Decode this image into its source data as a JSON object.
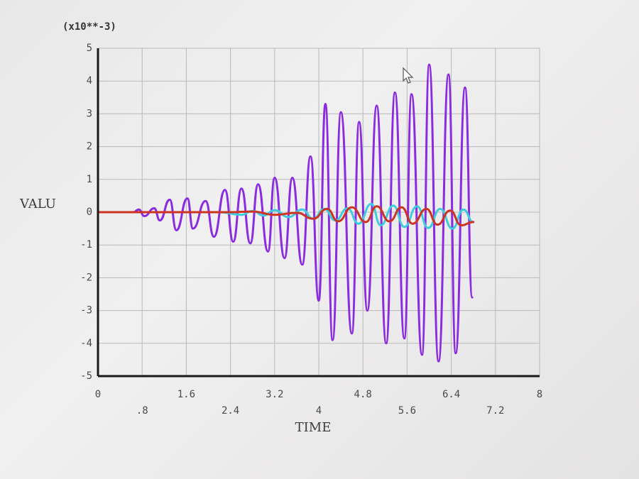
{
  "chart_data": {
    "type": "line",
    "scale_label": "(x10**-3)",
    "xlabel": "TIME",
    "ylabel": "VALU",
    "xlim": [
      0,
      8
    ],
    "ylim": [
      -5,
      5
    ],
    "grid": true,
    "x_ticks_upper": [
      {
        "value": 0,
        "label": "0"
      },
      {
        "value": 1.6,
        "label": "1.6"
      },
      {
        "value": 3.2,
        "label": "3.2"
      },
      {
        "value": 4.8,
        "label": "4.8"
      },
      {
        "value": 6.4,
        "label": "6.4"
      },
      {
        "value": 8,
        "label": "8"
      }
    ],
    "x_ticks_lower": [
      {
        "value": 0.8,
        "label": ".8"
      },
      {
        "value": 2.4,
        "label": "2.4"
      },
      {
        "value": 4,
        "label": "4"
      },
      {
        "value": 5.6,
        "label": "5.6"
      },
      {
        "value": 7.2,
        "label": "7.2"
      }
    ],
    "y_ticks": [
      {
        "value": 5,
        "label": "5"
      },
      {
        "value": 4,
        "label": "4"
      },
      {
        "value": 3,
        "label": "3"
      },
      {
        "value": 2,
        "label": "2"
      },
      {
        "value": 1,
        "label": "1"
      },
      {
        "value": 0,
        "label": "0"
      },
      {
        "value": -1,
        "label": "-1"
      },
      {
        "value": -2,
        "label": "-2"
      },
      {
        "value": -3,
        "label": "-3"
      },
      {
        "value": -4,
        "label": "-4"
      },
      {
        "value": -5,
        "label": "-5"
      }
    ],
    "series": [
      {
        "color": "#8a2be2",
        "points": [
          [
            0,
            0
          ],
          [
            0.5,
            0
          ],
          [
            0.64,
            0
          ],
          [
            0.74,
            0.08
          ],
          [
            0.84,
            -0.12
          ],
          [
            1.02,
            0.12
          ],
          [
            1.12,
            -0.25
          ],
          [
            1.3,
            0.38
          ],
          [
            1.42,
            -0.55
          ],
          [
            1.62,
            0.42
          ],
          [
            1.72,
            -0.5
          ],
          [
            1.95,
            0.34
          ],
          [
            2.1,
            -0.75
          ],
          [
            2.3,
            0.68
          ],
          [
            2.45,
            -0.9
          ],
          [
            2.6,
            0.72
          ],
          [
            2.76,
            -0.95
          ],
          [
            2.9,
            0.85
          ],
          [
            3.08,
            -1.2
          ],
          [
            3.2,
            1.05
          ],
          [
            3.38,
            -1.4
          ],
          [
            3.52,
            1.05
          ],
          [
            3.7,
            -1.6
          ],
          [
            3.85,
            1.7
          ],
          [
            4.0,
            -2.7
          ],
          [
            4.12,
            3.3
          ],
          [
            4.25,
            -3.9
          ],
          [
            4.4,
            3.05
          ],
          [
            4.6,
            -3.7
          ],
          [
            4.73,
            2.75
          ],
          [
            4.88,
            -3.0
          ],
          [
            5.05,
            3.25
          ],
          [
            5.22,
            -4.0
          ],
          [
            5.38,
            3.65
          ],
          [
            5.55,
            -3.85
          ],
          [
            5.68,
            3.6
          ],
          [
            5.87,
            -4.35
          ],
          [
            6.0,
            4.5
          ],
          [
            6.17,
            -4.55
          ],
          [
            6.35,
            4.2
          ],
          [
            6.48,
            -4.3
          ],
          [
            6.65,
            3.8
          ],
          [
            6.78,
            -2.6
          ]
        ]
      },
      {
        "color": "#3ecbdc",
        "points": [
          [
            0,
            0
          ],
          [
            2.2,
            0
          ],
          [
            2.6,
            -0.08
          ],
          [
            2.8,
            0.04
          ],
          [
            3.0,
            -0.1
          ],
          [
            3.2,
            0.06
          ],
          [
            3.45,
            -0.15
          ],
          [
            3.7,
            0.08
          ],
          [
            3.9,
            -0.2
          ],
          [
            4.1,
            0.1
          ],
          [
            4.3,
            -0.25
          ],
          [
            4.52,
            0.12
          ],
          [
            4.72,
            -0.35
          ],
          [
            4.95,
            0.25
          ],
          [
            5.12,
            -0.4
          ],
          [
            5.35,
            0.2
          ],
          [
            5.55,
            -0.45
          ],
          [
            5.78,
            0.18
          ],
          [
            5.98,
            -0.48
          ],
          [
            6.2,
            0.1
          ],
          [
            6.42,
            -0.5
          ],
          [
            6.62,
            0.08
          ],
          [
            6.8,
            -0.3
          ]
        ]
      },
      {
        "color": "#cc3322",
        "points": [
          [
            0,
            0
          ],
          [
            2.4,
            0
          ],
          [
            2.8,
            0.02
          ],
          [
            3.2,
            -0.08
          ],
          [
            3.6,
            -0.02
          ],
          [
            3.9,
            -0.2
          ],
          [
            4.15,
            0.1
          ],
          [
            4.35,
            -0.28
          ],
          [
            4.6,
            0.15
          ],
          [
            4.85,
            -0.3
          ],
          [
            5.05,
            0.18
          ],
          [
            5.28,
            -0.28
          ],
          [
            5.5,
            0.15
          ],
          [
            5.7,
            -0.35
          ],
          [
            5.95,
            0.1
          ],
          [
            6.15,
            -0.38
          ],
          [
            6.38,
            0.05
          ],
          [
            6.58,
            -0.4
          ],
          [
            6.8,
            -0.3
          ]
        ]
      }
    ]
  }
}
